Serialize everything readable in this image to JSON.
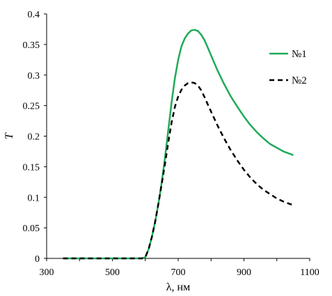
{
  "chart_data": {
    "type": "line",
    "xlabel": "λ, нм",
    "ylabel": "T",
    "xlim": [
      300,
      1100
    ],
    "ylim": [
      0,
      0.4
    ],
    "x_ticks": [
      "300",
      "500",
      "700",
      "900",
      "1100"
    ],
    "y_ticks": [
      "0",
      "0.05",
      "0.1",
      "0.15",
      "0.2",
      "0.25",
      "0.3",
      "0.35",
      "0.4"
    ],
    "grid": false,
    "legend_position": "right",
    "series": [
      {
        "name": "№1",
        "color": "#1faa59",
        "style": "solid",
        "points": [
          [
            350,
            0
          ],
          [
            590,
            0
          ],
          [
            600,
            0.002
          ],
          [
            610,
            0.015
          ],
          [
            620,
            0.035
          ],
          [
            630,
            0.06
          ],
          [
            640,
            0.09
          ],
          [
            650,
            0.125
          ],
          [
            660,
            0.165
          ],
          [
            670,
            0.21
          ],
          [
            680,
            0.255
          ],
          [
            690,
            0.295
          ],
          [
            700,
            0.325
          ],
          [
            710,
            0.347
          ],
          [
            720,
            0.36
          ],
          [
            730,
            0.368
          ],
          [
            740,
            0.373
          ],
          [
            750,
            0.374
          ],
          [
            760,
            0.372
          ],
          [
            770,
            0.366
          ],
          [
            780,
            0.357
          ],
          [
            790,
            0.345
          ],
          [
            800,
            0.332
          ],
          [
            820,
            0.307
          ],
          [
            840,
            0.285
          ],
          [
            860,
            0.265
          ],
          [
            880,
            0.248
          ],
          [
            900,
            0.232
          ],
          [
            920,
            0.218
          ],
          [
            940,
            0.206
          ],
          [
            960,
            0.196
          ],
          [
            980,
            0.187
          ],
          [
            1000,
            0.181
          ],
          [
            1020,
            0.175
          ],
          [
            1040,
            0.171
          ],
          [
            1050,
            0.169
          ]
        ]
      },
      {
        "name": "№2",
        "color": "#000000",
        "style": "dashed",
        "points": [
          [
            350,
            0
          ],
          [
            590,
            0
          ],
          [
            600,
            0.002
          ],
          [
            610,
            0.015
          ],
          [
            620,
            0.035
          ],
          [
            630,
            0.06
          ],
          [
            640,
            0.09
          ],
          [
            650,
            0.122
          ],
          [
            660,
            0.155
          ],
          [
            670,
            0.19
          ],
          [
            680,
            0.222
          ],
          [
            690,
            0.248
          ],
          [
            700,
            0.265
          ],
          [
            710,
            0.276
          ],
          [
            720,
            0.283
          ],
          [
            730,
            0.287
          ],
          [
            740,
            0.288
          ],
          [
            750,
            0.287
          ],
          [
            760,
            0.283
          ],
          [
            770,
            0.275
          ],
          [
            780,
            0.264
          ],
          [
            790,
            0.252
          ],
          [
            800,
            0.24
          ],
          [
            820,
            0.217
          ],
          [
            840,
            0.196
          ],
          [
            860,
            0.177
          ],
          [
            880,
            0.16
          ],
          [
            900,
            0.145
          ],
          [
            920,
            0.132
          ],
          [
            940,
            0.121
          ],
          [
            960,
            0.112
          ],
          [
            980,
            0.105
          ],
          [
            1000,
            0.098
          ],
          [
            1020,
            0.093
          ],
          [
            1040,
            0.089
          ],
          [
            1050,
            0.087
          ]
        ]
      }
    ]
  }
}
